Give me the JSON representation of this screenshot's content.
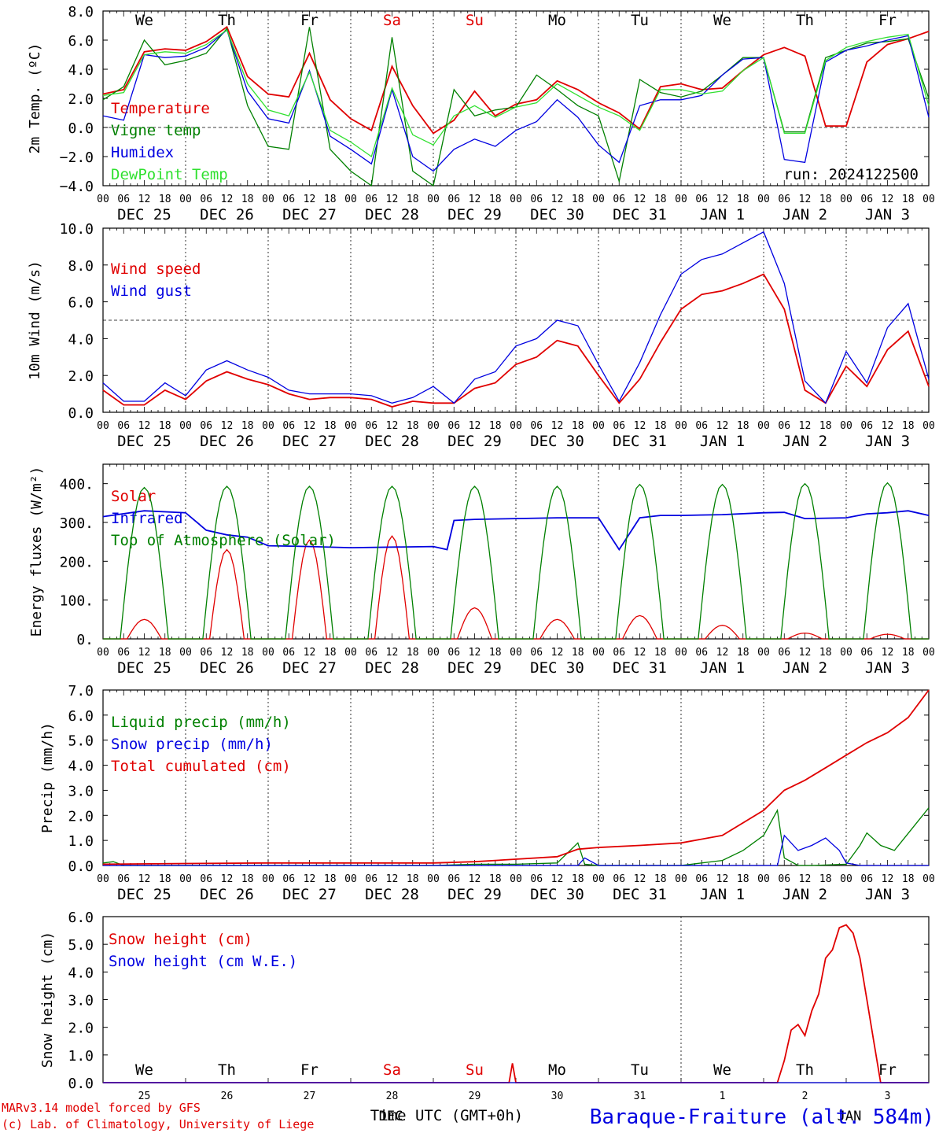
{
  "run_label": "run: 2024122500",
  "hour_ticks": [
    "00",
    "06",
    "12",
    "18"
  ],
  "day_labels": [
    "DEC 25",
    "DEC 26",
    "DEC 27",
    "DEC 28",
    "DEC 29",
    "DEC 30",
    "DEC 31",
    "JAN 1",
    "JAN 2",
    "JAN 3"
  ],
  "weekdays_top": [
    {
      "label": "We",
      "color": "#000000"
    },
    {
      "label": "Th",
      "color": "#000000"
    },
    {
      "label": "Fr",
      "color": "#000000"
    },
    {
      "label": "Sa",
      "color": "#e00000"
    },
    {
      "label": "Su",
      "color": "#e00000"
    },
    {
      "label": "Mo",
      "color": "#000000"
    },
    {
      "label": "Tu",
      "color": "#000000"
    },
    {
      "label": "We",
      "color": "#000000"
    },
    {
      "label": "Th",
      "color": "#000000"
    },
    {
      "label": "Fr",
      "color": "#000000"
    }
  ],
  "weekdays_bottom": [
    {
      "label": "We",
      "color": "#000000"
    },
    {
      "label": "Th",
      "color": "#000000"
    },
    {
      "label": "Fr",
      "color": "#000000"
    },
    {
      "label": "Sa",
      "color": "#e00000"
    },
    {
      "label": "Su",
      "color": "#e00000"
    },
    {
      "label": "Mo",
      "color": "#000000"
    },
    {
      "label": "Tu",
      "color": "#000000"
    },
    {
      "label": "We",
      "color": "#000000"
    },
    {
      "label": "Th",
      "color": "#000000"
    },
    {
      "label": "Fr",
      "color": "#000000"
    }
  ],
  "bottom_day_numbers": [
    "25",
    "26",
    "27",
    "28",
    "29",
    "30",
    "31",
    "1",
    "2",
    "3"
  ],
  "footer": {
    "model_line": "MARv3.14 model forced by GFS",
    "lab_line": "(c) Lab. of Climatology, University of Liege",
    "time_label": "Time UTC (GMT+0h)",
    "month_left": "DEC",
    "month_right": "JAN",
    "station": "Baraque-Fraiture (alt. 584m)"
  },
  "colors": {
    "red": "#e00000",
    "green": "#008000",
    "blue": "#0000e0",
    "lightgreen": "#30e030",
    "black": "#000000"
  },
  "chart_data": [
    {
      "type": "line",
      "ylabel": "2m Temp. (ºC)",
      "ylim": [
        -4,
        8
      ],
      "yticks": [
        "8.0",
        "6.0",
        "4.0",
        "2.0",
        "0.0",
        "−2.0",
        "−4.0"
      ],
      "ref_line": 0,
      "x_unit": "hours since DEC 25 00 UTC",
      "series": [
        {
          "name": "Temperature",
          "color": "#e00000",
          "x": [
            0,
            6,
            12,
            18,
            24,
            30,
            36,
            42,
            48,
            54,
            60,
            66,
            72,
            78,
            84,
            90,
            96,
            102,
            108,
            114,
            120,
            126,
            132,
            138,
            144,
            150,
            156,
            162,
            168,
            174,
            180,
            186,
            192,
            198,
            204,
            210,
            216,
            222,
            228,
            234,
            240
          ],
          "y": [
            2.3,
            2.6,
            5.2,
            5.4,
            5.3,
            5.9,
            6.9,
            3.5,
            2.3,
            2.1,
            5.1,
            1.9,
            0.6,
            -0.2,
            4.2,
            1.5,
            -0.4,
            0.5,
            2.5,
            0.8,
            1.6,
            1.9,
            3.2,
            2.6,
            1.7,
            1.0,
            -0.1,
            2.8,
            3.0,
            2.6,
            2.7,
            3.9,
            5.0,
            5.5,
            4.9,
            0.1,
            0.1,
            4.5,
            5.7,
            6.1,
            6.6
          ]
        },
        {
          "name": "Vigne temp",
          "color": "#008000",
          "x": [
            0,
            6,
            12,
            18,
            24,
            30,
            36,
            42,
            48,
            54,
            60,
            66,
            72,
            78,
            84,
            90,
            96,
            102,
            108,
            114,
            120,
            126,
            132,
            138,
            144,
            150,
            156,
            162,
            168,
            174,
            180,
            186,
            192,
            198,
            204,
            210,
            216,
            222,
            228,
            234,
            240
          ],
          "y": [
            1.9,
            2.8,
            6.0,
            4.3,
            4.6,
            5.1,
            6.8,
            1.5,
            -1.3,
            -1.5,
            6.9,
            -1.5,
            -3.0,
            -4.0,
            6.2,
            -3.0,
            -4.0,
            2.6,
            0.8,
            1.2,
            1.4,
            3.6,
            2.6,
            1.5,
            0.8,
            -3.7,
            3.3,
            2.4,
            2.1,
            2.5,
            3.6,
            4.8,
            4.8,
            -0.3,
            -0.3,
            4.8,
            5.3,
            5.8,
            5.9,
            6.1,
            2.0
          ]
        },
        {
          "name": "Humidex",
          "color": "#0000e0",
          "x": [
            0,
            6,
            12,
            18,
            24,
            30,
            36,
            42,
            48,
            54,
            60,
            66,
            72,
            78,
            84,
            90,
            96,
            102,
            108,
            114,
            120,
            126,
            132,
            138,
            144,
            150,
            156,
            162,
            168,
            174,
            180,
            186,
            192,
            198,
            204,
            210,
            216,
            222,
            228,
            234,
            240
          ],
          "y": [
            0.8,
            0.5,
            5.0,
            4.8,
            4.9,
            5.5,
            6.7,
            2.5,
            0.6,
            0.3,
            3.9,
            -0.6,
            -1.5,
            -2.5,
            2.6,
            -2.0,
            -3.0,
            -1.5,
            -0.8,
            -1.3,
            -0.2,
            0.4,
            1.9,
            0.7,
            -1.2,
            -2.4,
            1.5,
            1.9,
            1.9,
            2.2,
            3.6,
            4.7,
            4.8,
            -2.2,
            -2.4,
            4.5,
            5.3,
            5.6,
            6.0,
            6.3,
            0.7
          ]
        },
        {
          "name": "DewPoint Temp",
          "color": "#30e030",
          "x": [
            0,
            6,
            12,
            18,
            24,
            30,
            36,
            42,
            48,
            54,
            60,
            66,
            72,
            78,
            84,
            90,
            96,
            102,
            108,
            114,
            120,
            126,
            132,
            138,
            144,
            150,
            156,
            162,
            168,
            174,
            180,
            186,
            192,
            198,
            204,
            210,
            216,
            222,
            228,
            234,
            240
          ],
          "y": [
            2.2,
            2.4,
            5.0,
            5.2,
            5.1,
            5.7,
            6.7,
            3.0,
            1.2,
            0.8,
            3.8,
            -0.2,
            -1.0,
            -2.0,
            2.7,
            -0.5,
            -1.2,
            0.8,
            1.5,
            0.7,
            1.4,
            1.7,
            3.0,
            2.2,
            1.4,
            0.8,
            -0.2,
            2.6,
            2.6,
            2.3,
            2.5,
            3.9,
            4.8,
            -0.4,
            -0.4,
            4.6,
            5.5,
            5.9,
            6.2,
            6.4,
            1.5
          ]
        }
      ]
    },
    {
      "type": "line",
      "ylabel": "10m Wind (m/s)",
      "ylim": [
        0,
        10
      ],
      "yticks": [
        "10.0",
        "8.0",
        "6.0",
        "4.0",
        "2.0",
        "0.0"
      ],
      "ref_line": 5,
      "x_unit": "hours since DEC 25 00 UTC",
      "series": [
        {
          "name": "Wind speed",
          "color": "#e00000",
          "x": [
            0,
            6,
            12,
            18,
            24,
            30,
            36,
            42,
            48,
            54,
            60,
            66,
            72,
            78,
            84,
            90,
            96,
            102,
            108,
            114,
            120,
            126,
            132,
            138,
            144,
            150,
            156,
            162,
            168,
            174,
            180,
            186,
            192,
            198,
            204,
            210,
            216,
            222,
            228,
            234,
            240
          ],
          "y": [
            1.2,
            0.4,
            0.4,
            1.2,
            0.7,
            1.7,
            2.2,
            1.8,
            1.5,
            1.0,
            0.7,
            0.8,
            0.8,
            0.7,
            0.3,
            0.6,
            0.5,
            0.5,
            1.3,
            1.6,
            2.6,
            3.0,
            3.9,
            3.6,
            2.0,
            0.5,
            1.8,
            3.8,
            5.6,
            6.4,
            6.6,
            7.0,
            7.5,
            5.6,
            1.2,
            0.5,
            2.5,
            1.4,
            3.4,
            4.4,
            1.4
          ]
        },
        {
          "name": "Wind gust",
          "color": "#0000e0",
          "x": [
            0,
            6,
            12,
            18,
            24,
            30,
            36,
            42,
            48,
            54,
            60,
            66,
            72,
            78,
            84,
            90,
            96,
            102,
            108,
            114,
            120,
            126,
            132,
            138,
            144,
            150,
            156,
            162,
            168,
            174,
            180,
            186,
            192,
            198,
            204,
            210,
            216,
            222,
            228,
            234,
            240
          ],
          "y": [
            1.6,
            0.6,
            0.6,
            1.6,
            0.9,
            2.3,
            2.8,
            2.3,
            1.9,
            1.2,
            1.0,
            1.0,
            1.0,
            0.9,
            0.5,
            0.8,
            1.4,
            0.5,
            1.8,
            2.2,
            3.6,
            4.0,
            5.0,
            4.7,
            2.6,
            0.6,
            2.7,
            5.3,
            7.5,
            8.3,
            8.6,
            9.2,
            9.8,
            7.0,
            1.7,
            0.5,
            3.3,
            1.6,
            4.6,
            5.9,
            1.8
          ]
        }
      ]
    },
    {
      "type": "line",
      "ylabel": "Energy fluxes (W/m²)",
      "ylim": [
        0,
        450
      ],
      "yticks": [
        "400.",
        "300.",
        "200.",
        "100.",
        "0."
      ],
      "x_unit": "hours since DEC 25 00 UTC",
      "series": [
        {
          "name": "Solar",
          "color": "#e00000",
          "peaks": [
            50,
            230,
            255,
            265,
            80,
            50,
            60,
            35,
            15,
            12
          ]
        },
        {
          "name": "Infrared",
          "color": "#0000e0",
          "x": [
            0,
            12,
            24,
            30,
            36,
            42,
            48,
            60,
            72,
            96,
            100,
            102,
            108,
            120,
            132,
            144,
            150,
            156,
            162,
            168,
            180,
            192,
            198,
            204,
            216,
            222,
            228,
            234,
            240
          ],
          "y": [
            315,
            330,
            325,
            280,
            268,
            262,
            240,
            238,
            235,
            238,
            230,
            305,
            308,
            310,
            312,
            312,
            230,
            312,
            318,
            318,
            320,
            325,
            326,
            310,
            312,
            322,
            325,
            330,
            318
          ]
        },
        {
          "name": "Top of Atmosphere (Solar)",
          "color": "#008000",
          "peaks": [
            390,
            393,
            393,
            393,
            393,
            393,
            398,
            398,
            400,
            402
          ]
        }
      ]
    },
    {
      "type": "line",
      "ylabel": "Precip (mm/h)",
      "ylim": [
        0,
        7
      ],
      "yticks": [
        "7.0",
        "6.0",
        "5.0",
        "4.0",
        "3.0",
        "2.0",
        "1.0",
        "0.0"
      ],
      "x_unit": "hours since DEC 25 00 UTC",
      "series": [
        {
          "name": "Liquid precip (mm/h)",
          "color": "#008000",
          "x": [
            0,
            3,
            6,
            24,
            48,
            96,
            108,
            120,
            132,
            138,
            140,
            144,
            168,
            180,
            186,
            192,
            196,
            198,
            202,
            206,
            216,
            220,
            222,
            226,
            230,
            240
          ],
          "y": [
            0.1,
            0.15,
            0,
            0,
            0,
            0,
            0.05,
            0.05,
            0.1,
            0.9,
            0.05,
            0,
            0,
            0.2,
            0.6,
            1.2,
            2.2,
            0.3,
            0,
            0,
            0.05,
            0.8,
            1.3,
            0.8,
            0.6,
            2.3
          ]
        },
        {
          "name": "Snow precip (mm/h)",
          "color": "#0000e0",
          "x": [
            0,
            138,
            140,
            144,
            196,
            198,
            202,
            206,
            210,
            214,
            216,
            220,
            240
          ],
          "y": [
            0,
            0,
            0.3,
            0,
            0,
            1.2,
            0.6,
            0.8,
            1.1,
            0.6,
            0.1,
            0,
            0
          ]
        },
        {
          "name": "Total cumulated (cm)",
          "color": "#e00000",
          "x": [
            0,
            24,
            48,
            72,
            96,
            108,
            120,
            132,
            138,
            144,
            156,
            168,
            180,
            192,
            198,
            204,
            210,
            216,
            222,
            228,
            234,
            240
          ],
          "y": [
            0.05,
            0.08,
            0.1,
            0.1,
            0.1,
            0.15,
            0.25,
            0.35,
            0.65,
            0.72,
            0.8,
            0.9,
            1.2,
            2.2,
            3.0,
            3.4,
            3.9,
            4.4,
            4.9,
            5.3,
            5.9,
            7.0
          ]
        }
      ]
    },
    {
      "type": "line",
      "ylabel": "Snow height (cm)",
      "ylim": [
        0,
        6
      ],
      "yticks": [
        "6.0",
        "5.0",
        "4.0",
        "3.0",
        "2.0",
        "1.0",
        "0.0"
      ],
      "x_unit": "hours since DEC 25 00 UTC",
      "series": [
        {
          "name": "Snow height (cm)",
          "color": "#e00000",
          "x": [
            0,
            118,
            119,
            120,
            196,
            198,
            200,
            202,
            204,
            206,
            208,
            210,
            212,
            214,
            216,
            218,
            220,
            222,
            224,
            226,
            240
          ],
          "y": [
            0,
            0,
            0.7,
            0,
            0,
            0.8,
            1.9,
            2.1,
            1.7,
            2.6,
            3.2,
            4.5,
            4.8,
            5.6,
            5.7,
            5.4,
            4.5,
            3.0,
            1.5,
            0,
            0
          ]
        },
        {
          "name": "Snow height (cm W.E.)",
          "color": "#0000e0",
          "x": [
            0,
            240
          ],
          "y": [
            0,
            0
          ]
        }
      ]
    }
  ]
}
